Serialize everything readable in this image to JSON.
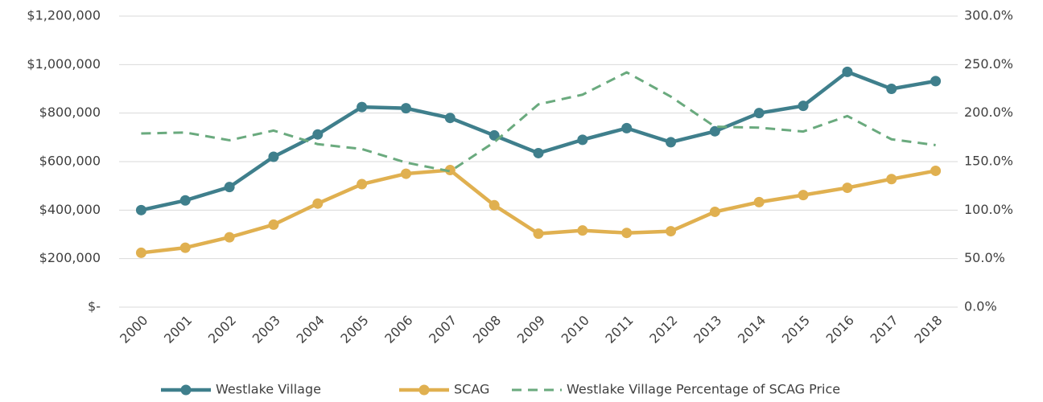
{
  "chart_data": {
    "type": "line",
    "categories": [
      "2000",
      "2001",
      "2002",
      "2003",
      "2004",
      "2005",
      "2006",
      "2007",
      "2008",
      "2009",
      "2010",
      "2011",
      "2012",
      "2013",
      "2014",
      "2015",
      "2016",
      "2017",
      "2018"
    ],
    "series": [
      {
        "name": "Westlake Village",
        "color": "#3f7f8c",
        "marker": true,
        "dashed": false,
        "values": [
          400000,
          440000,
          495000,
          620000,
          712000,
          825000,
          820000,
          780000,
          708000,
          635000,
          690000,
          738000,
          680000,
          725000,
          800000,
          830000,
          970000,
          900000,
          932000
        ]
      },
      {
        "name": "SCAG",
        "color": "#e0b050",
        "marker": true,
        "dashed": false,
        "values": [
          224000,
          245000,
          288000,
          340000,
          427000,
          507000,
          550000,
          565000,
          420000,
          303000,
          316000,
          306000,
          313000,
          393000,
          433000,
          462000,
          492000,
          528000,
          562000
        ]
      },
      {
        "name": "Westlake Village Percentage of SCAG Price",
        "color": "#6aaa7e",
        "marker": false,
        "dashed": true,
        "axis": "y2",
        "values": [
          179,
          180,
          172,
          182,
          168,
          163,
          149,
          140,
          170,
          209,
          219,
          242,
          217,
          186,
          185,
          181,
          197,
          173,
          167
        ]
      }
    ],
    "ylim": [
      0,
      1200000
    ],
    "yticks": [
      {
        "value": 0,
        "label": "$-"
      },
      {
        "value": 200000,
        "label": "$200,000"
      },
      {
        "value": 400000,
        "label": "$400,000"
      },
      {
        "value": 600000,
        "label": "$600,000"
      },
      {
        "value": 800000,
        "label": "$800,000"
      },
      {
        "value": 1000000,
        "label": "$1,000,000"
      },
      {
        "value": 1200000,
        "label": "$1,200,000"
      }
    ],
    "y2lim": [
      0,
      300
    ],
    "y2ticks": [
      {
        "value": 0,
        "label": "0.0%"
      },
      {
        "value": 50,
        "label": "50.0%"
      },
      {
        "value": 100,
        "label": "100.0%"
      },
      {
        "value": 150,
        "label": "150.0%"
      },
      {
        "value": 200,
        "label": "200.0%"
      },
      {
        "value": 250,
        "label": "250.0%"
      },
      {
        "value": 300,
        "label": "300.0%"
      }
    ],
    "grid": true,
    "legend": "bottom"
  }
}
